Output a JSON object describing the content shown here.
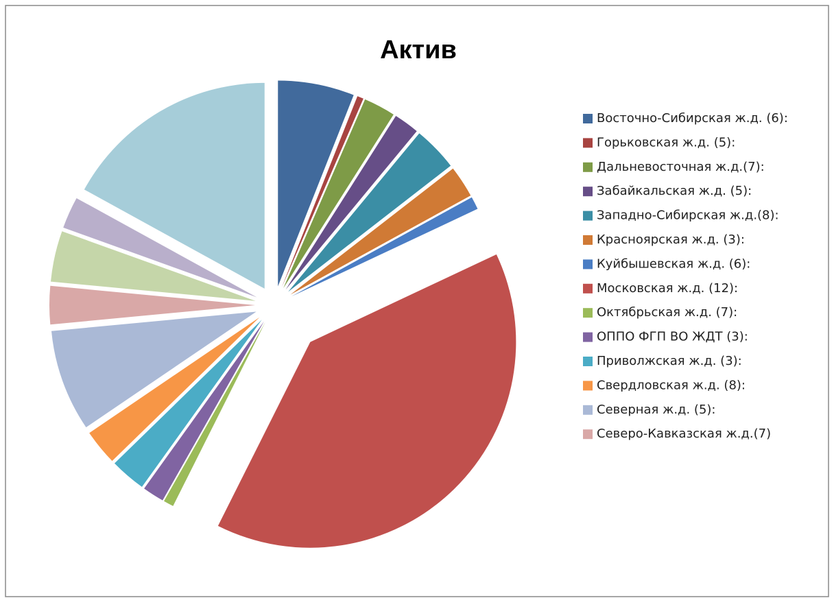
{
  "chart_data": {
    "type": "pie",
    "title": "Актив",
    "categories": [
      "Восточно-Сибирская ж.д. (6):",
      "Горьковская ж.д. (5):",
      "Дальневосточная ж.д.(7):",
      "Забайкальская ж.д. (5):",
      "Западно-Сибирская ж.д.(8):",
      "Красноярская ж.д. (3):",
      "Куйбышевская ж.д. (6):",
      "Московская ж.д. (12):",
      "Октябрьская ж.д. (7):",
      "ОППО ФГП ВО ЖДТ (3):",
      "Приволжская ж.д. (3):",
      "Свердловская ж.д. (8):",
      "Северная ж.д. (5):",
      "Северо-Кавказская ж.д.(7)",
      null,
      null,
      null
    ],
    "values": [
      6,
      0.5,
      2.5,
      2,
      3.5,
      2.5,
      1,
      39.4,
      0.8,
      1.7,
      2.8,
      2.8,
      8,
      3,
      4,
      2.5,
      17
    ],
    "colors": [
      "#416A9C",
      "#A84441",
      "#7E9B47",
      "#664E87",
      "#3B8EA5",
      "#D07A35",
      "#4A7DC4",
      "#C0504D",
      "#9BBB59",
      "#8064A2",
      "#4BACC6",
      "#F79646",
      "#AAB9D6",
      "#D9A8A7",
      "#C5D6A9",
      "#B9AFCB",
      "#A6CDD9"
    ],
    "legend": "right"
  }
}
